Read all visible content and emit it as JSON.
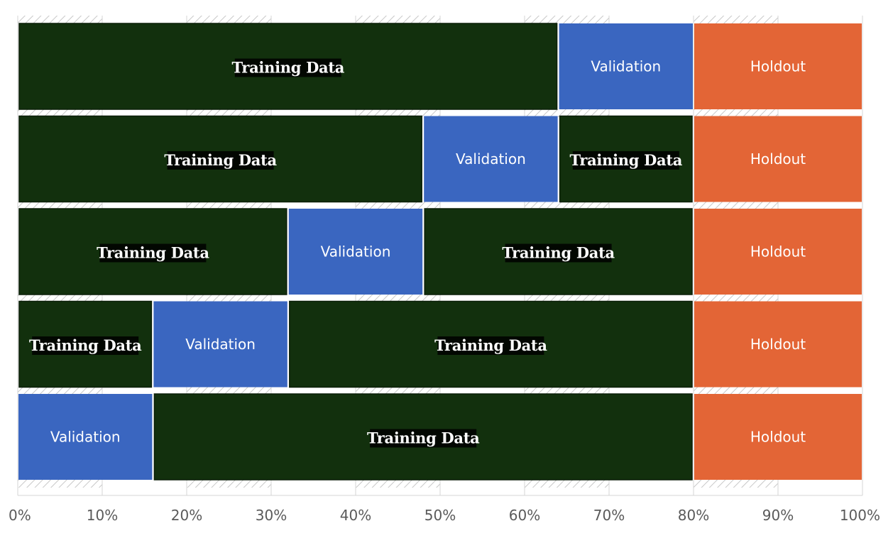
{
  "colors": {
    "training": "#12300d",
    "validation": "#3a66c0",
    "holdout": "#e36536",
    "gridline": "#d4d4d4",
    "hatch": "#c8c8c8",
    "tick_text": "#5a5a5a"
  },
  "labels": {
    "training": "Training Data",
    "validation": "Validation",
    "holdout": "Holdout"
  },
  "axis": {
    "range": [
      0,
      100
    ],
    "ticks": [
      "0%",
      "10%",
      "20%",
      "30%",
      "40%",
      "50%",
      "60%",
      "70%",
      "80%",
      "90%",
      "100%"
    ]
  },
  "rows": [
    [
      {
        "type": "training",
        "start": 0,
        "end": 64
      },
      {
        "type": "validation",
        "start": 64,
        "end": 80
      },
      {
        "type": "holdout",
        "start": 80,
        "end": 100
      }
    ],
    [
      {
        "type": "training",
        "start": 0,
        "end": 48
      },
      {
        "type": "validation",
        "start": 48,
        "end": 64
      },
      {
        "type": "training",
        "start": 64,
        "end": 80
      },
      {
        "type": "holdout",
        "start": 80,
        "end": 100
      }
    ],
    [
      {
        "type": "training",
        "start": 0,
        "end": 32
      },
      {
        "type": "validation",
        "start": 32,
        "end": 48
      },
      {
        "type": "training",
        "start": 48,
        "end": 80
      },
      {
        "type": "holdout",
        "start": 80,
        "end": 100
      }
    ],
    [
      {
        "type": "training",
        "start": 0,
        "end": 16
      },
      {
        "type": "validation",
        "start": 16,
        "end": 32
      },
      {
        "type": "training",
        "start": 32,
        "end": 80
      },
      {
        "type": "holdout",
        "start": 80,
        "end": 100
      }
    ],
    [
      {
        "type": "validation",
        "start": 0,
        "end": 16
      },
      {
        "type": "training",
        "start": 16,
        "end": 80
      },
      {
        "type": "holdout",
        "start": 80,
        "end": 100
      }
    ]
  ]
}
